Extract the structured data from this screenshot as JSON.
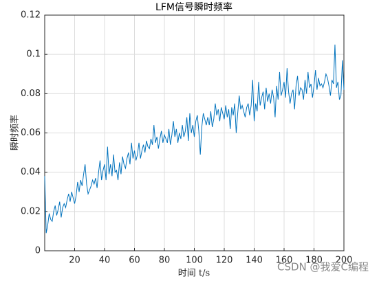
{
  "chart_data": {
    "type": "line",
    "title": "LFM信号瞬时频率",
    "xlabel": "时间 t/s",
    "ylabel": "瞬时频率",
    "watermark": "CSDN @我爱C编程",
    "xlim": [
      0,
      200
    ],
    "xticks": [
      20,
      40,
      60,
      80,
      100,
      120,
      140,
      160,
      180,
      200
    ],
    "ylim": [
      0,
      0.12
    ],
    "yticks": [
      0,
      0.02,
      0.04,
      0.06,
      0.08,
      0.1,
      0.12
    ],
    "grid": true,
    "x": [
      0,
      1,
      2,
      3,
      4,
      5,
      6,
      7,
      8,
      9,
      10,
      11,
      12,
      13,
      14,
      15,
      16,
      17,
      18,
      19,
      20,
      21,
      22,
      23,
      24,
      25,
      26,
      27,
      28,
      29,
      30,
      31,
      32,
      33,
      34,
      35,
      36,
      37,
      38,
      39,
      40,
      41,
      42,
      43,
      44,
      45,
      46,
      47,
      48,
      49,
      50,
      51,
      52,
      53,
      54,
      55,
      56,
      57,
      58,
      59,
      60,
      61,
      62,
      63,
      64,
      65,
      66,
      67,
      68,
      69,
      70,
      71,
      72,
      73,
      74,
      75,
      76,
      77,
      78,
      79,
      80,
      81,
      82,
      83,
      84,
      85,
      86,
      87,
      88,
      89,
      90,
      91,
      92,
      93,
      94,
      95,
      96,
      97,
      98,
      99,
      100,
      101,
      102,
      103,
      104,
      105,
      106,
      107,
      108,
      109,
      110,
      111,
      112,
      113,
      114,
      115,
      116,
      117,
      118,
      119,
      120,
      121,
      122,
      123,
      124,
      125,
      126,
      127,
      128,
      129,
      130,
      131,
      132,
      133,
      134,
      135,
      136,
      137,
      138,
      139,
      140,
      141,
      142,
      143,
      144,
      145,
      146,
      147,
      148,
      149,
      150,
      151,
      152,
      153,
      154,
      155,
      156,
      157,
      158,
      159,
      160,
      161,
      162,
      163,
      164,
      165,
      166,
      167,
      168,
      169,
      170,
      171,
      172,
      173,
      174,
      175,
      176,
      177,
      178,
      179,
      180,
      181,
      182,
      183,
      184,
      185,
      186,
      187,
      188,
      189,
      190,
      191,
      192,
      193,
      194,
      195,
      196,
      197,
      198,
      199,
      200
    ],
    "series": [
      {
        "color": "#0072bd",
        "values": [
          0.038,
          0.009,
          0.013,
          0.019,
          0.016,
          0.015,
          0.02,
          0.023,
          0.018,
          0.021,
          0.025,
          0.017,
          0.022,
          0.024,
          0.022,
          0.026,
          0.029,
          0.025,
          0.03,
          0.027,
          0.024,
          0.028,
          0.035,
          0.03,
          0.036,
          0.033,
          0.039,
          0.044,
          0.034,
          0.029,
          0.031,
          0.033,
          0.036,
          0.034,
          0.037,
          0.032,
          0.04,
          0.046,
          0.036,
          0.041,
          0.044,
          0.036,
          0.053,
          0.039,
          0.044,
          0.038,
          0.049,
          0.04,
          0.041,
          0.036,
          0.045,
          0.039,
          0.048,
          0.044,
          0.042,
          0.047,
          0.05,
          0.044,
          0.055,
          0.047,
          0.051,
          0.046,
          0.049,
          0.055,
          0.047,
          0.051,
          0.054,
          0.05,
          0.056,
          0.053,
          0.052,
          0.057,
          0.054,
          0.064,
          0.055,
          0.058,
          0.052,
          0.057,
          0.061,
          0.055,
          0.059,
          0.057,
          0.055,
          0.062,
          0.054,
          0.059,
          0.066,
          0.058,
          0.062,
          0.055,
          0.06,
          0.057,
          0.064,
          0.058,
          0.061,
          0.068,
          0.056,
          0.07,
          0.06,
          0.064,
          0.058,
          0.066,
          0.069,
          0.061,
          0.049,
          0.063,
          0.07,
          0.067,
          0.064,
          0.068,
          0.064,
          0.071,
          0.063,
          0.067,
          0.075,
          0.069,
          0.072,
          0.066,
          0.073,
          0.07,
          0.067,
          0.074,
          0.068,
          0.072,
          0.062,
          0.073,
          0.069,
          0.075,
          0.06,
          0.07,
          0.079,
          0.072,
          0.074,
          0.071,
          0.068,
          0.073,
          0.075,
          0.069,
          0.074,
          0.087,
          0.066,
          0.075,
          0.071,
          0.086,
          0.074,
          0.078,
          0.081,
          0.072,
          0.083,
          0.076,
          0.08,
          0.075,
          0.082,
          0.078,
          0.068,
          0.084,
          0.077,
          0.091,
          0.079,
          0.082,
          0.086,
          0.078,
          0.093,
          0.081,
          0.075,
          0.08,
          0.082,
          0.072,
          0.084,
          0.089,
          0.079,
          0.083,
          0.082,
          0.077,
          0.087,
          0.08,
          0.091,
          0.083,
          0.085,
          0.078,
          0.084,
          0.092,
          0.082,
          0.088,
          0.084,
          0.085,
          0.083,
          0.086,
          0.09,
          0.088,
          0.084,
          0.079,
          0.087,
          0.085,
          0.105,
          0.083,
          0.086,
          0.077,
          0.079,
          0.097,
          0.082
        ]
      }
    ]
  }
}
